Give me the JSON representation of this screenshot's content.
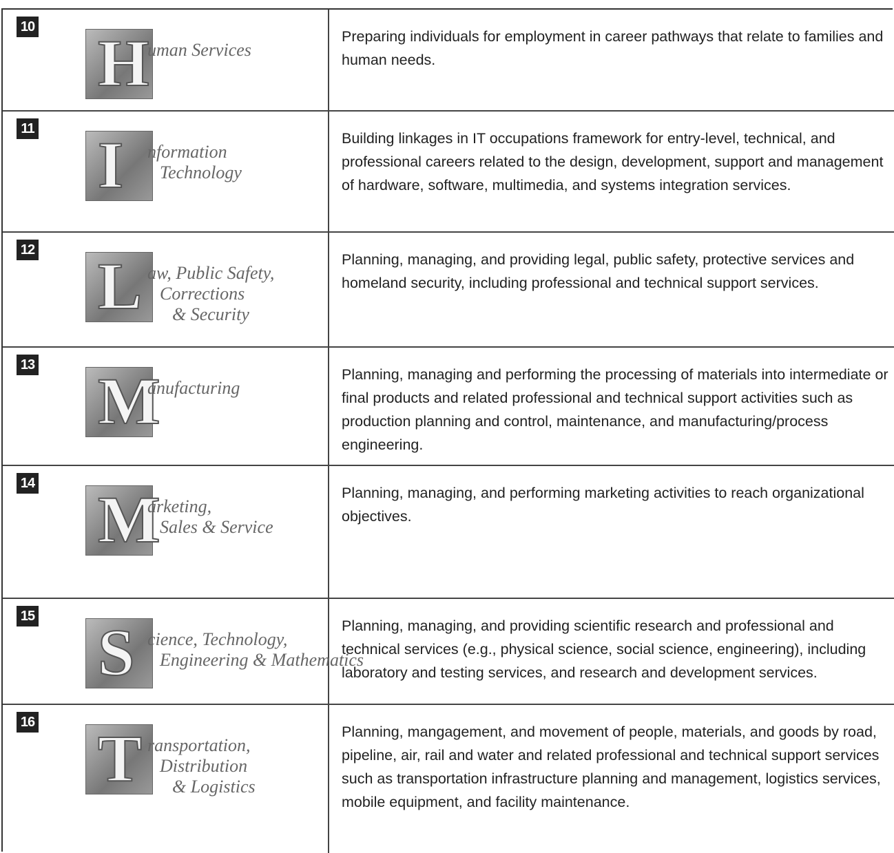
{
  "rows": [
    {
      "number": "10",
      "logo": {
        "initial": "H",
        "text": [
          "uman Services"
        ]
      },
      "description": "Preparing individuals for employment in career pathways that relate to families and human needs."
    },
    {
      "number": "11",
      "logo": {
        "initial": "I",
        "text": [
          "nformation",
          "Technology"
        ]
      },
      "description": "Building linkages in IT occupations framework for entry-level, technical, and professional careers related to the design, development, support and management of hardware, software, multimedia, and systems integration services."
    },
    {
      "number": "12",
      "logo": {
        "initial": "L",
        "text": [
          "aw, Public Safety,",
          "Corrections",
          "& Security"
        ]
      },
      "description": "Planning, managing, and providing legal, public safety, protective services and homeland security, including professional and technical support services."
    },
    {
      "number": "13",
      "logo": {
        "initial": "M",
        "text": [
          "anufacturing"
        ]
      },
      "description": "Planning, managing and performing the processing of materials into intermediate or final products and related professional and technical support activities such as production planning and control, maintenance, and manufacturing/process engineering."
    },
    {
      "number": "14",
      "logo": {
        "initial": "M",
        "text": [
          "arketing,",
          "Sales & Service"
        ]
      },
      "description": "Planning, managing, and performing marketing activities to reach organizational objectives."
    },
    {
      "number": "15",
      "logo": {
        "initial": "S",
        "text": [
          "cience, Technology,",
          "Engineering & Mathematics"
        ]
      },
      "description": "Planning, managing, and providing scientific research and professional and technical services (e.g., physical science, social science, engineering), including laboratory and testing services, and research and development services."
    },
    {
      "number": "16",
      "logo": {
        "initial": "T",
        "text": [
          "ransportation,",
          "Distribution",
          "& Logistics"
        ]
      },
      "description": "Planning, mangagement, and movement of people, materials, and goods by road, pipeline, air, rail and water and related professional and technical support services such as transportation infrastructure planning and management, logistics services, mobile equipment, and facility maintenance."
    }
  ]
}
